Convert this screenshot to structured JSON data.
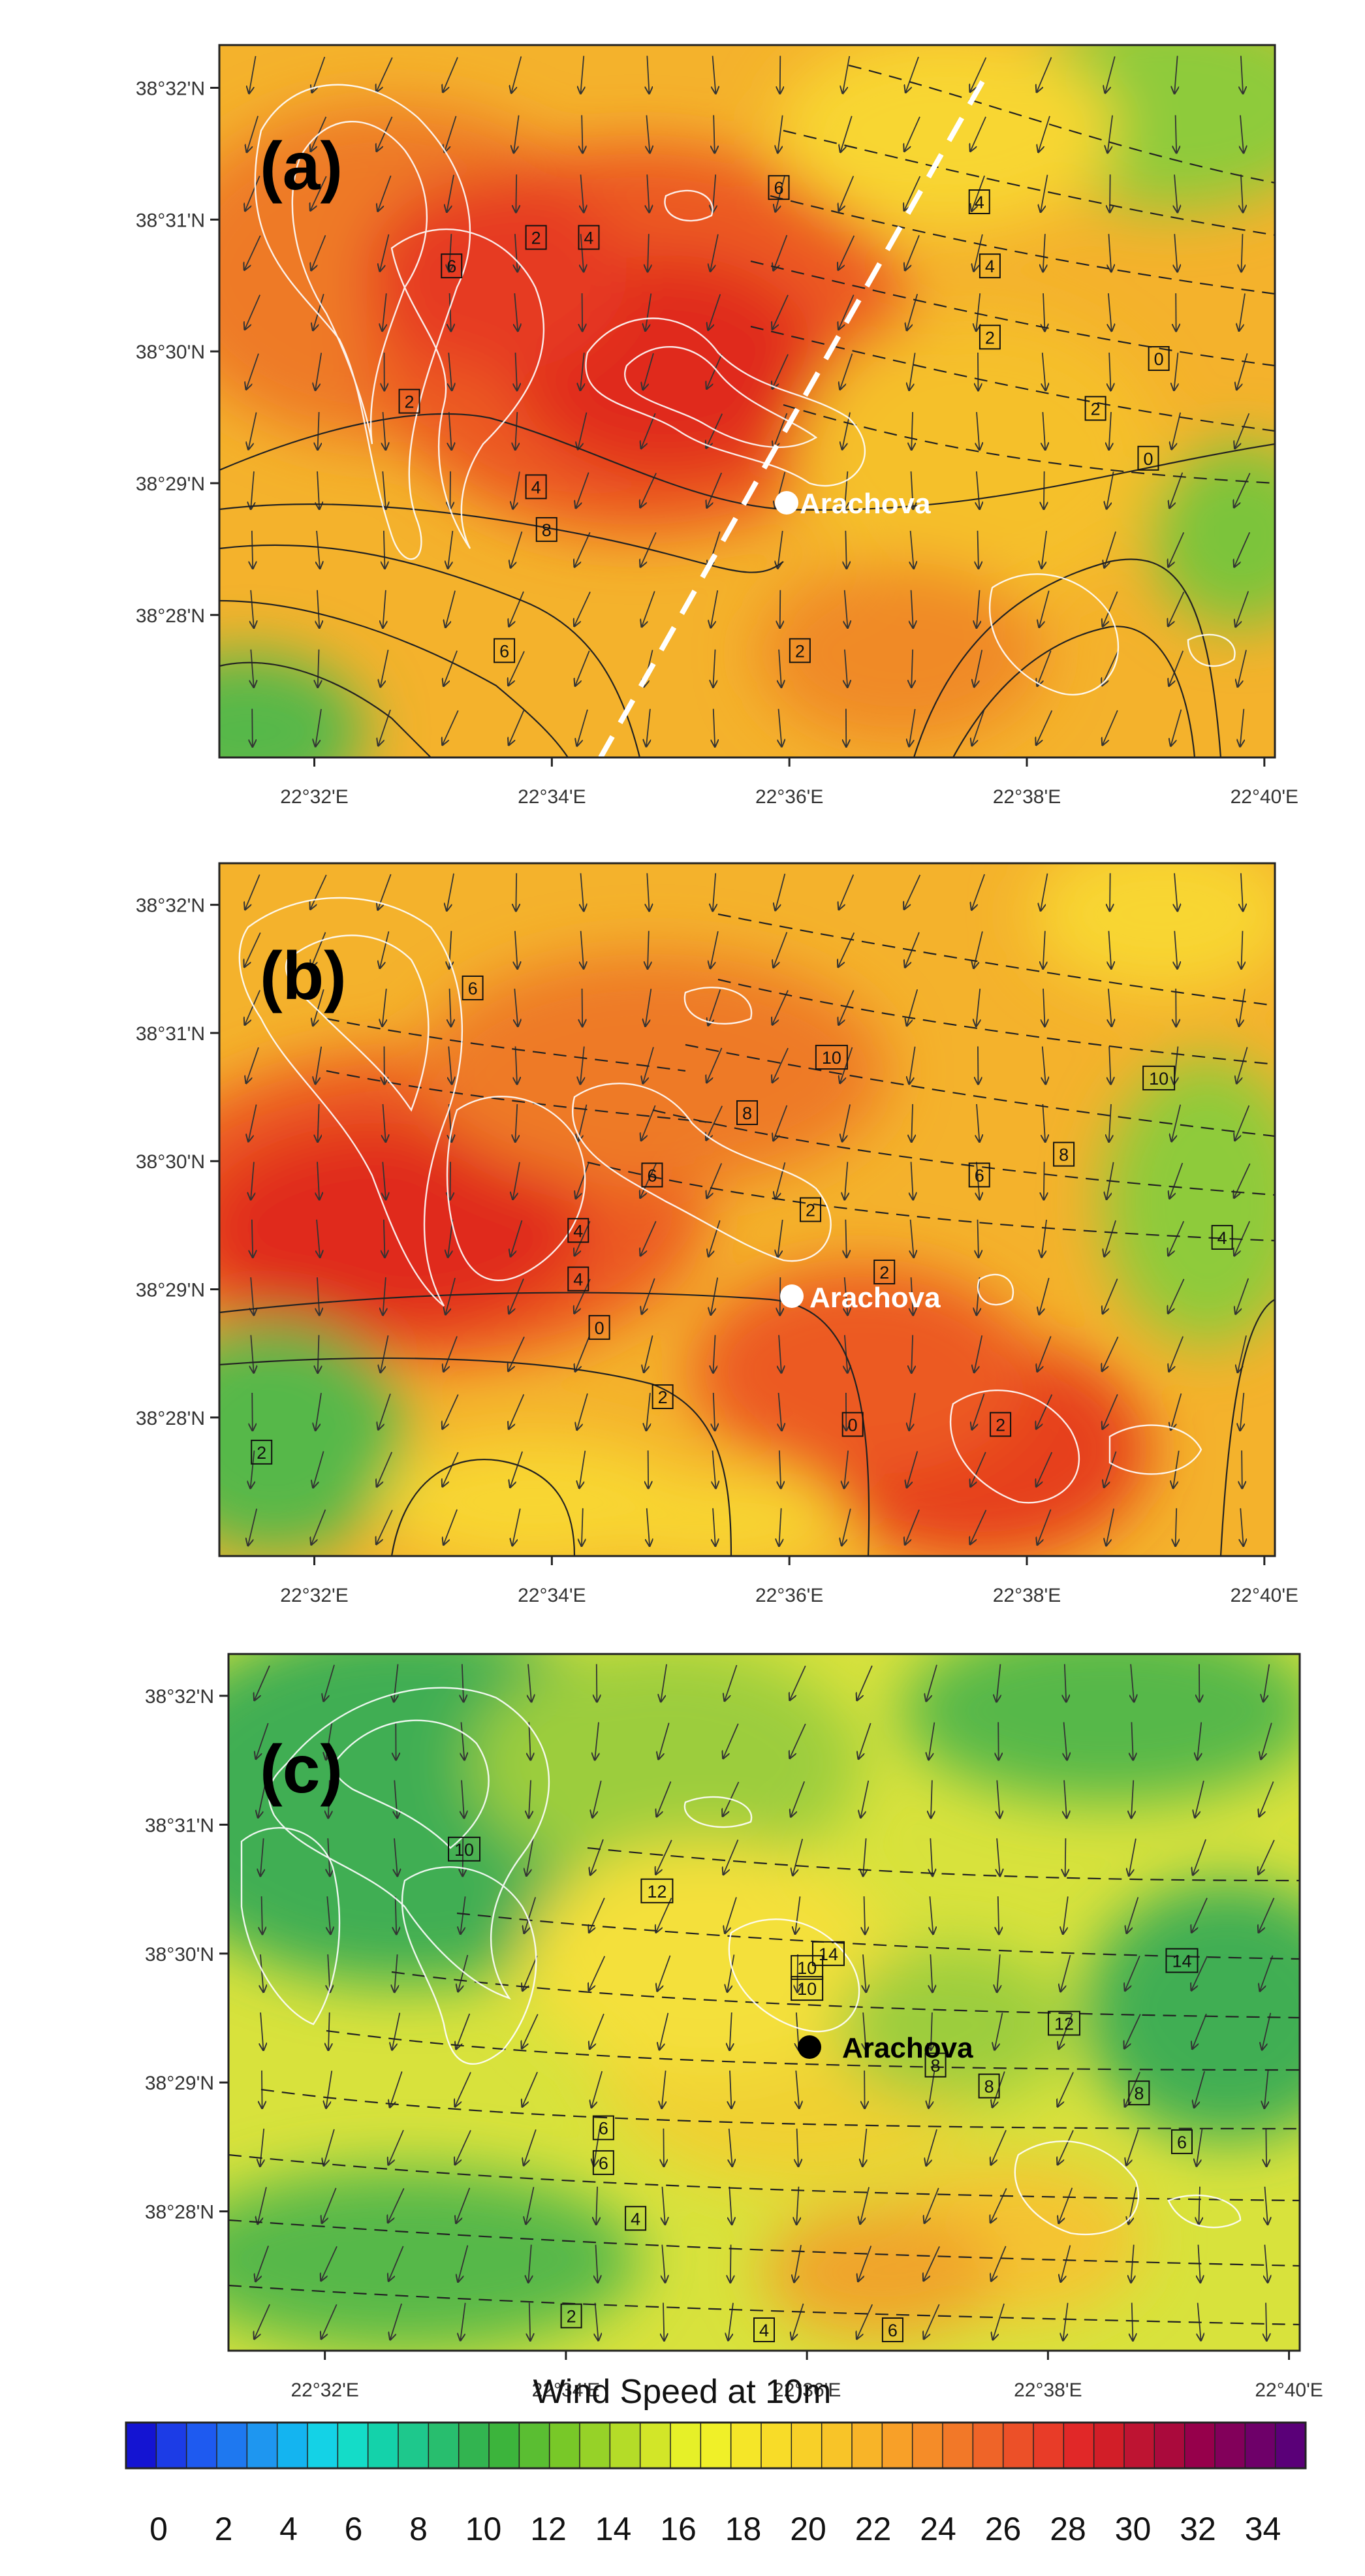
{
  "panels": [
    {
      "id": "a",
      "letter": "(a)",
      "lat_labels": [
        "38°32'N",
        "38°31'N",
        "38°30'N",
        "38°29'N",
        "38°28'N"
      ],
      "lon_labels": [
        "22°32'E",
        "22°34'E",
        "22°36'E",
        "22°38'E",
        "22°40'E"
      ],
      "location": {
        "name": "Arachova",
        "marker_color": "#ffffff",
        "text_color": "#ffffff"
      },
      "cross_section_line": true,
      "contour_labels": [
        "2",
        "4",
        "6",
        "2",
        "4",
        "6",
        "8",
        "6",
        "4",
        "4",
        "2",
        "2",
        "0",
        "0",
        "2"
      ],
      "field_colors": [
        "#f8d630",
        "#f4b42c",
        "#f08a26",
        "#ec5a22",
        "#e42a1e",
        "#c62224",
        "#8ecb3a",
        "#56b84a"
      ]
    },
    {
      "id": "b",
      "letter": "(b)",
      "lat_labels": [
        "38°32'N",
        "38°31'N",
        "38°30'N",
        "38°29'N",
        "38°28'N"
      ],
      "lon_labels": [
        "22°32'E",
        "22°34'E",
        "22°36'E",
        "22°38'E",
        "22°40'E"
      ],
      "location": {
        "name": "Arachova",
        "marker_color": "#ffffff",
        "text_color": "#ffffff"
      },
      "cross_section_line": false,
      "contour_labels": [
        "6",
        "10",
        "8",
        "6",
        "4",
        "4",
        "2",
        "0",
        "2",
        "2",
        "0",
        "2",
        "10",
        "8",
        "6",
        "4",
        "2"
      ],
      "field_colors": [
        "#f8d630",
        "#f4b42c",
        "#f08a26",
        "#ec5a22",
        "#e42a1e",
        "#c62224",
        "#8ecb3a",
        "#56b84a"
      ]
    },
    {
      "id": "c",
      "letter": "(c)",
      "lat_labels": [
        "38°32'N",
        "38°31'N",
        "38°30'N",
        "38°29'N",
        "38°28'N"
      ],
      "lon_labels": [
        "22°32'E",
        "22°34'E",
        "22°36'E",
        "22°38'E",
        "22°40'E"
      ],
      "location": {
        "name": "Arachova",
        "marker_color": "#000000",
        "text_color": "#000000"
      },
      "cross_section_line": false,
      "contour_labels": [
        "10",
        "12",
        "14",
        "14",
        "12",
        "10",
        "10",
        "8",
        "8",
        "6",
        "6",
        "4",
        "2",
        "4",
        "6",
        "8",
        "6"
      ],
      "field_colors": [
        "#e8e63c",
        "#c6dc3c",
        "#9ccd3c",
        "#6dbe44",
        "#3fae52",
        "#2aa078",
        "#f4c430",
        "#f0a42a"
      ]
    }
  ],
  "colorbar": {
    "title": "Wind Speed at 10m",
    "tick_labels": [
      "0",
      "2",
      "4",
      "6",
      "8",
      "10",
      "12",
      "14",
      "16",
      "18",
      "20",
      "22",
      "24",
      "26",
      "28",
      "30",
      "32",
      "34"
    ],
    "colors": [
      "#1414d2",
      "#1c3ce6",
      "#1e5af0",
      "#1e78f0",
      "#1e96f0",
      "#14b4f0",
      "#14d2e6",
      "#14dcc8",
      "#14d2aa",
      "#1ec88c",
      "#28be6e",
      "#32b450",
      "#3cb43c",
      "#5abe32",
      "#78c828",
      "#96d228",
      "#b4dc28",
      "#d2e628",
      "#e6f028",
      "#f0f028",
      "#f5e628",
      "#f8dc28",
      "#f8d028",
      "#f8c428",
      "#f8b428",
      "#f8a028",
      "#f58c28",
      "#f27828",
      "#ef6428",
      "#ec5028",
      "#e83c28",
      "#e12828",
      "#d21e28",
      "#be1432",
      "#aa0a3c",
      "#96004b",
      "#82005a",
      "#6e0069",
      "#5a0078"
    ]
  }
}
